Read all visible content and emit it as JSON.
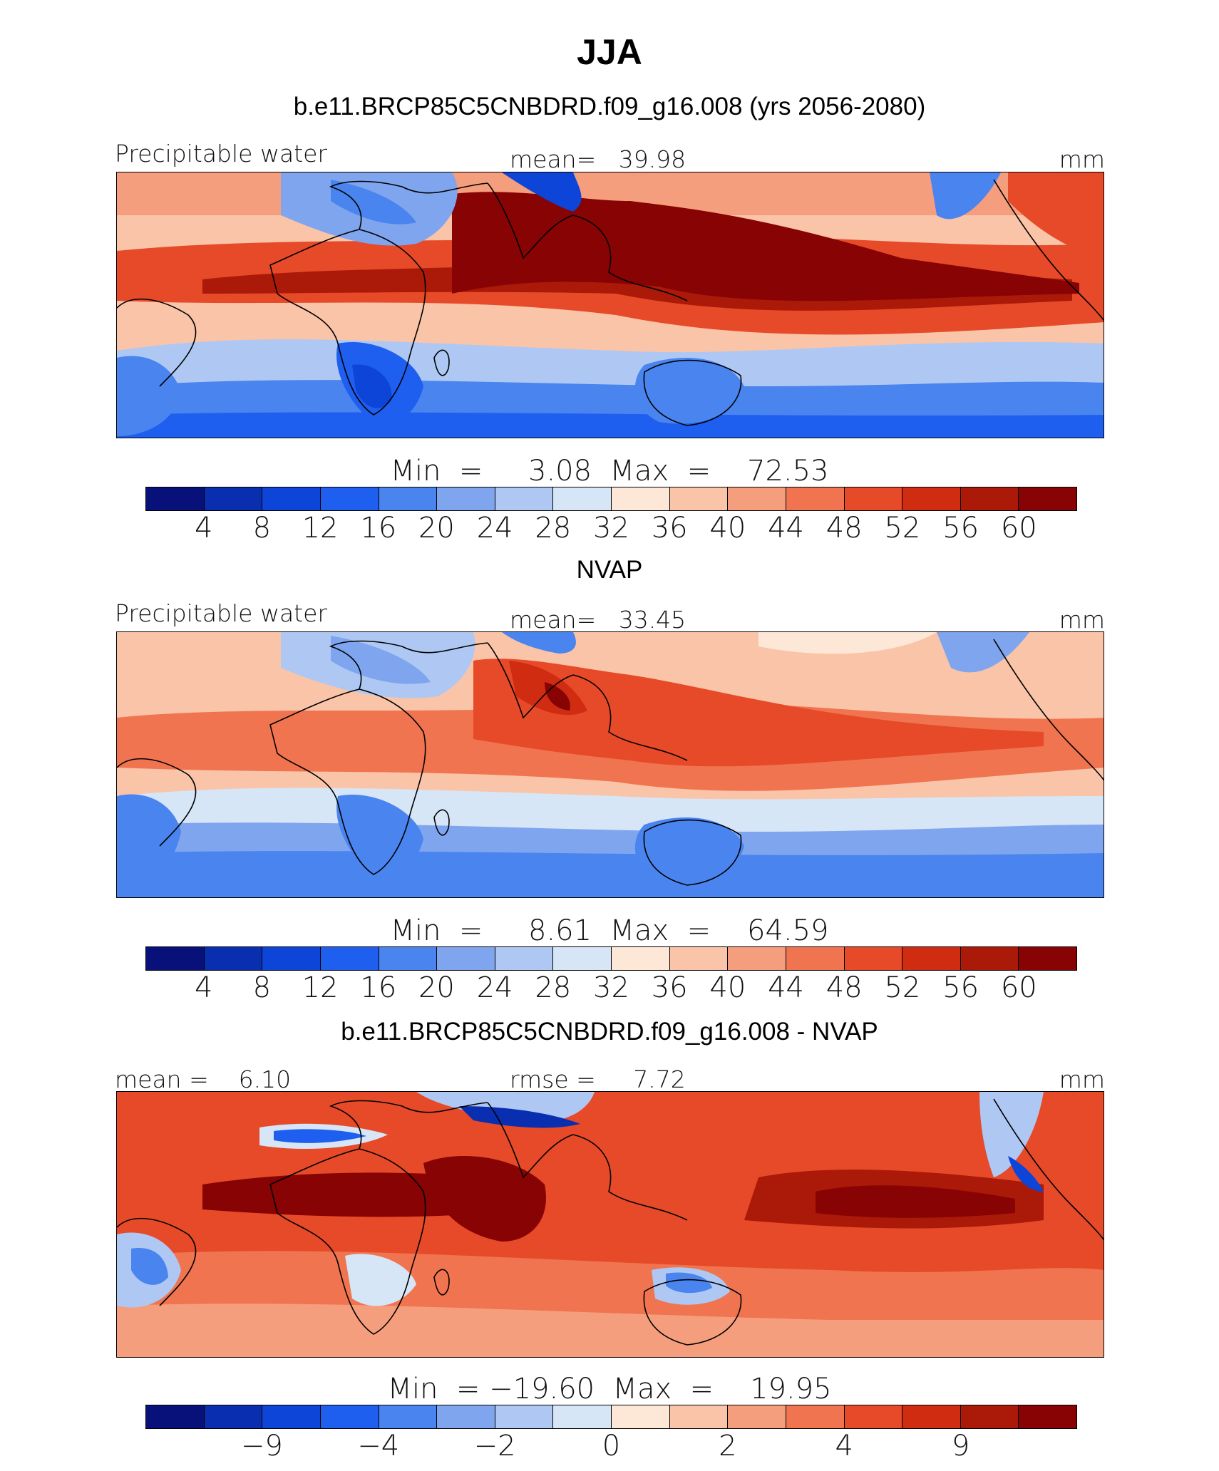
{
  "title": "JJA",
  "palette": [
    "#08107a",
    "#0a2eb0",
    "#0d45d8",
    "#1f5ff0",
    "#4a84ef",
    "#7fa5ee",
    "#aec8f3",
    "#d6e6f7",
    "#fde7d6",
    "#fac4a8",
    "#f59e7d",
    "#f07450",
    "#e64a28",
    "#cf2c12",
    "#ab1908",
    "#870304"
  ],
  "panels": [
    {
      "title": "b.e11.BRCP85C5CNBDRD.f09_g16.008 (yrs 2056-2080)",
      "left_label": "Precipitable water",
      "center_label": "mean=   39.98",
      "right_label": "mm",
      "minmax_label": "Min  =     3.08  Max  =    72.53",
      "ticks": [
        "4",
        "8",
        "12",
        "16",
        "20",
        "24",
        "28",
        "32",
        "36",
        "40",
        "44",
        "48",
        "52",
        "56",
        "60"
      ]
    },
    {
      "title": "NVAP",
      "left_label": "Precipitable water",
      "center_label": "mean=   33.45",
      "right_label": "mm",
      "minmax_label": "Min  =     8.61  Max  =    64.59",
      "ticks": [
        "4",
        "8",
        "12",
        "16",
        "20",
        "24",
        "28",
        "32",
        "36",
        "40",
        "44",
        "48",
        "52",
        "56",
        "60"
      ]
    },
    {
      "title": "b.e11.BRCP85C5CNBDRD.f09_g16.008 - NVAP",
      "left_label": "mean =    6.10",
      "center_label": "rmse =     7.72",
      "right_label": "mm",
      "minmax_label": "Min  = −19.60  Max  =    19.95",
      "ticks": [
        "−9",
        "",
        "−4",
        "",
        "−2",
        "",
        "0",
        "",
        "2",
        "",
        "4",
        "",
        "9"
      ]
    }
  ],
  "chart_data": [
    {
      "type": "heatmap",
      "title": "b.e11.BRCP85C5CNBDRD.f09_g16.008 (yrs 2056-2080)",
      "variable": "Precipitable water",
      "units": "mm",
      "mean": 39.98,
      "min": 3.08,
      "max": 72.53,
      "contour_levels": [
        4,
        8,
        12,
        16,
        20,
        24,
        28,
        32,
        36,
        40,
        44,
        48,
        52,
        56,
        60
      ],
      "colorbar_boxes": 16
    },
    {
      "type": "heatmap",
      "title": "NVAP",
      "variable": "Precipitable water",
      "units": "mm",
      "mean": 33.45,
      "min": 8.61,
      "max": 64.59,
      "contour_levels": [
        4,
        8,
        12,
        16,
        20,
        24,
        28,
        32,
        36,
        40,
        44,
        48,
        52,
        56,
        60
      ],
      "colorbar_boxes": 16
    },
    {
      "type": "heatmap",
      "title": "b.e11.BRCP85C5CNBDRD.f09_g16.008 - NVAP",
      "units": "mm",
      "mean": 6.1,
      "rmse": 7.72,
      "min": -19.6,
      "max": 19.95,
      "tick_labels": [
        "−9",
        "−4",
        "−2",
        "0",
        "2",
        "4",
        "9"
      ],
      "colorbar_boxes": 16
    }
  ]
}
